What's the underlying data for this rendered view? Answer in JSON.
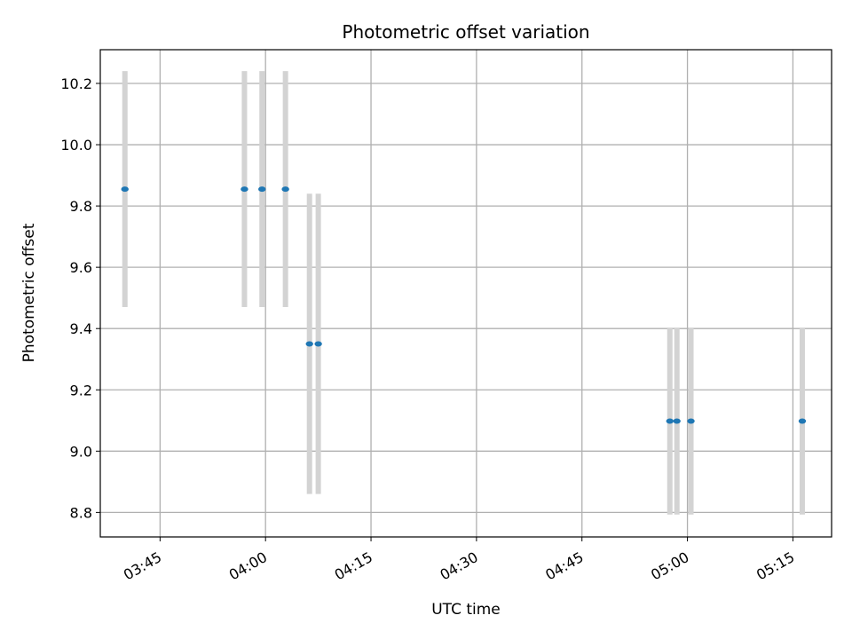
{
  "chart_data": {
    "type": "scatter",
    "title": "Photometric offset variation",
    "xlabel": "UTC time",
    "ylabel": "Photometric offset",
    "x_ticks": [
      {
        "value": "03:45",
        "label": "03:45"
      },
      {
        "value": "04:00",
        "label": "04:00"
      },
      {
        "value": "04:15",
        "label": "04:15"
      },
      {
        "value": "04:30",
        "label": "04:30"
      },
      {
        "value": "04:45",
        "label": "04:45"
      },
      {
        "value": "05:00",
        "label": "05:00"
      },
      {
        "value": "05:15",
        "label": "05:15"
      }
    ],
    "y_ticks": [
      "8.8",
      "9.0",
      "9.2",
      "9.4",
      "9.6",
      "9.8",
      "10.0",
      "10.2"
    ],
    "xlim": [
      "03:36:30",
      "05:20:30"
    ],
    "ylim": [
      8.72,
      10.31
    ],
    "grid": true,
    "point_color": "#1f77b4",
    "errorbar_color": "#d3d3d3",
    "points": [
      {
        "x": "03:40:00",
        "y": 9.855,
        "err": 0.385
      },
      {
        "x": "03:57:00",
        "y": 9.855,
        "err": 0.385
      },
      {
        "x": "03:59:30",
        "y": 9.855,
        "err": 0.385
      },
      {
        "x": "04:02:50",
        "y": 9.855,
        "err": 0.385
      },
      {
        "x": "04:06:15",
        "y": 9.35,
        "err": 0.49
      },
      {
        "x": "04:07:30",
        "y": 9.35,
        "err": 0.49
      },
      {
        "x": "04:57:30",
        "y": 9.098,
        "err": 0.305
      },
      {
        "x": "04:58:30",
        "y": 9.098,
        "err": 0.305
      },
      {
        "x": "05:00:30",
        "y": 9.098,
        "err": 0.305
      },
      {
        "x": "05:16:20",
        "y": 9.098,
        "err": 0.305
      }
    ]
  }
}
